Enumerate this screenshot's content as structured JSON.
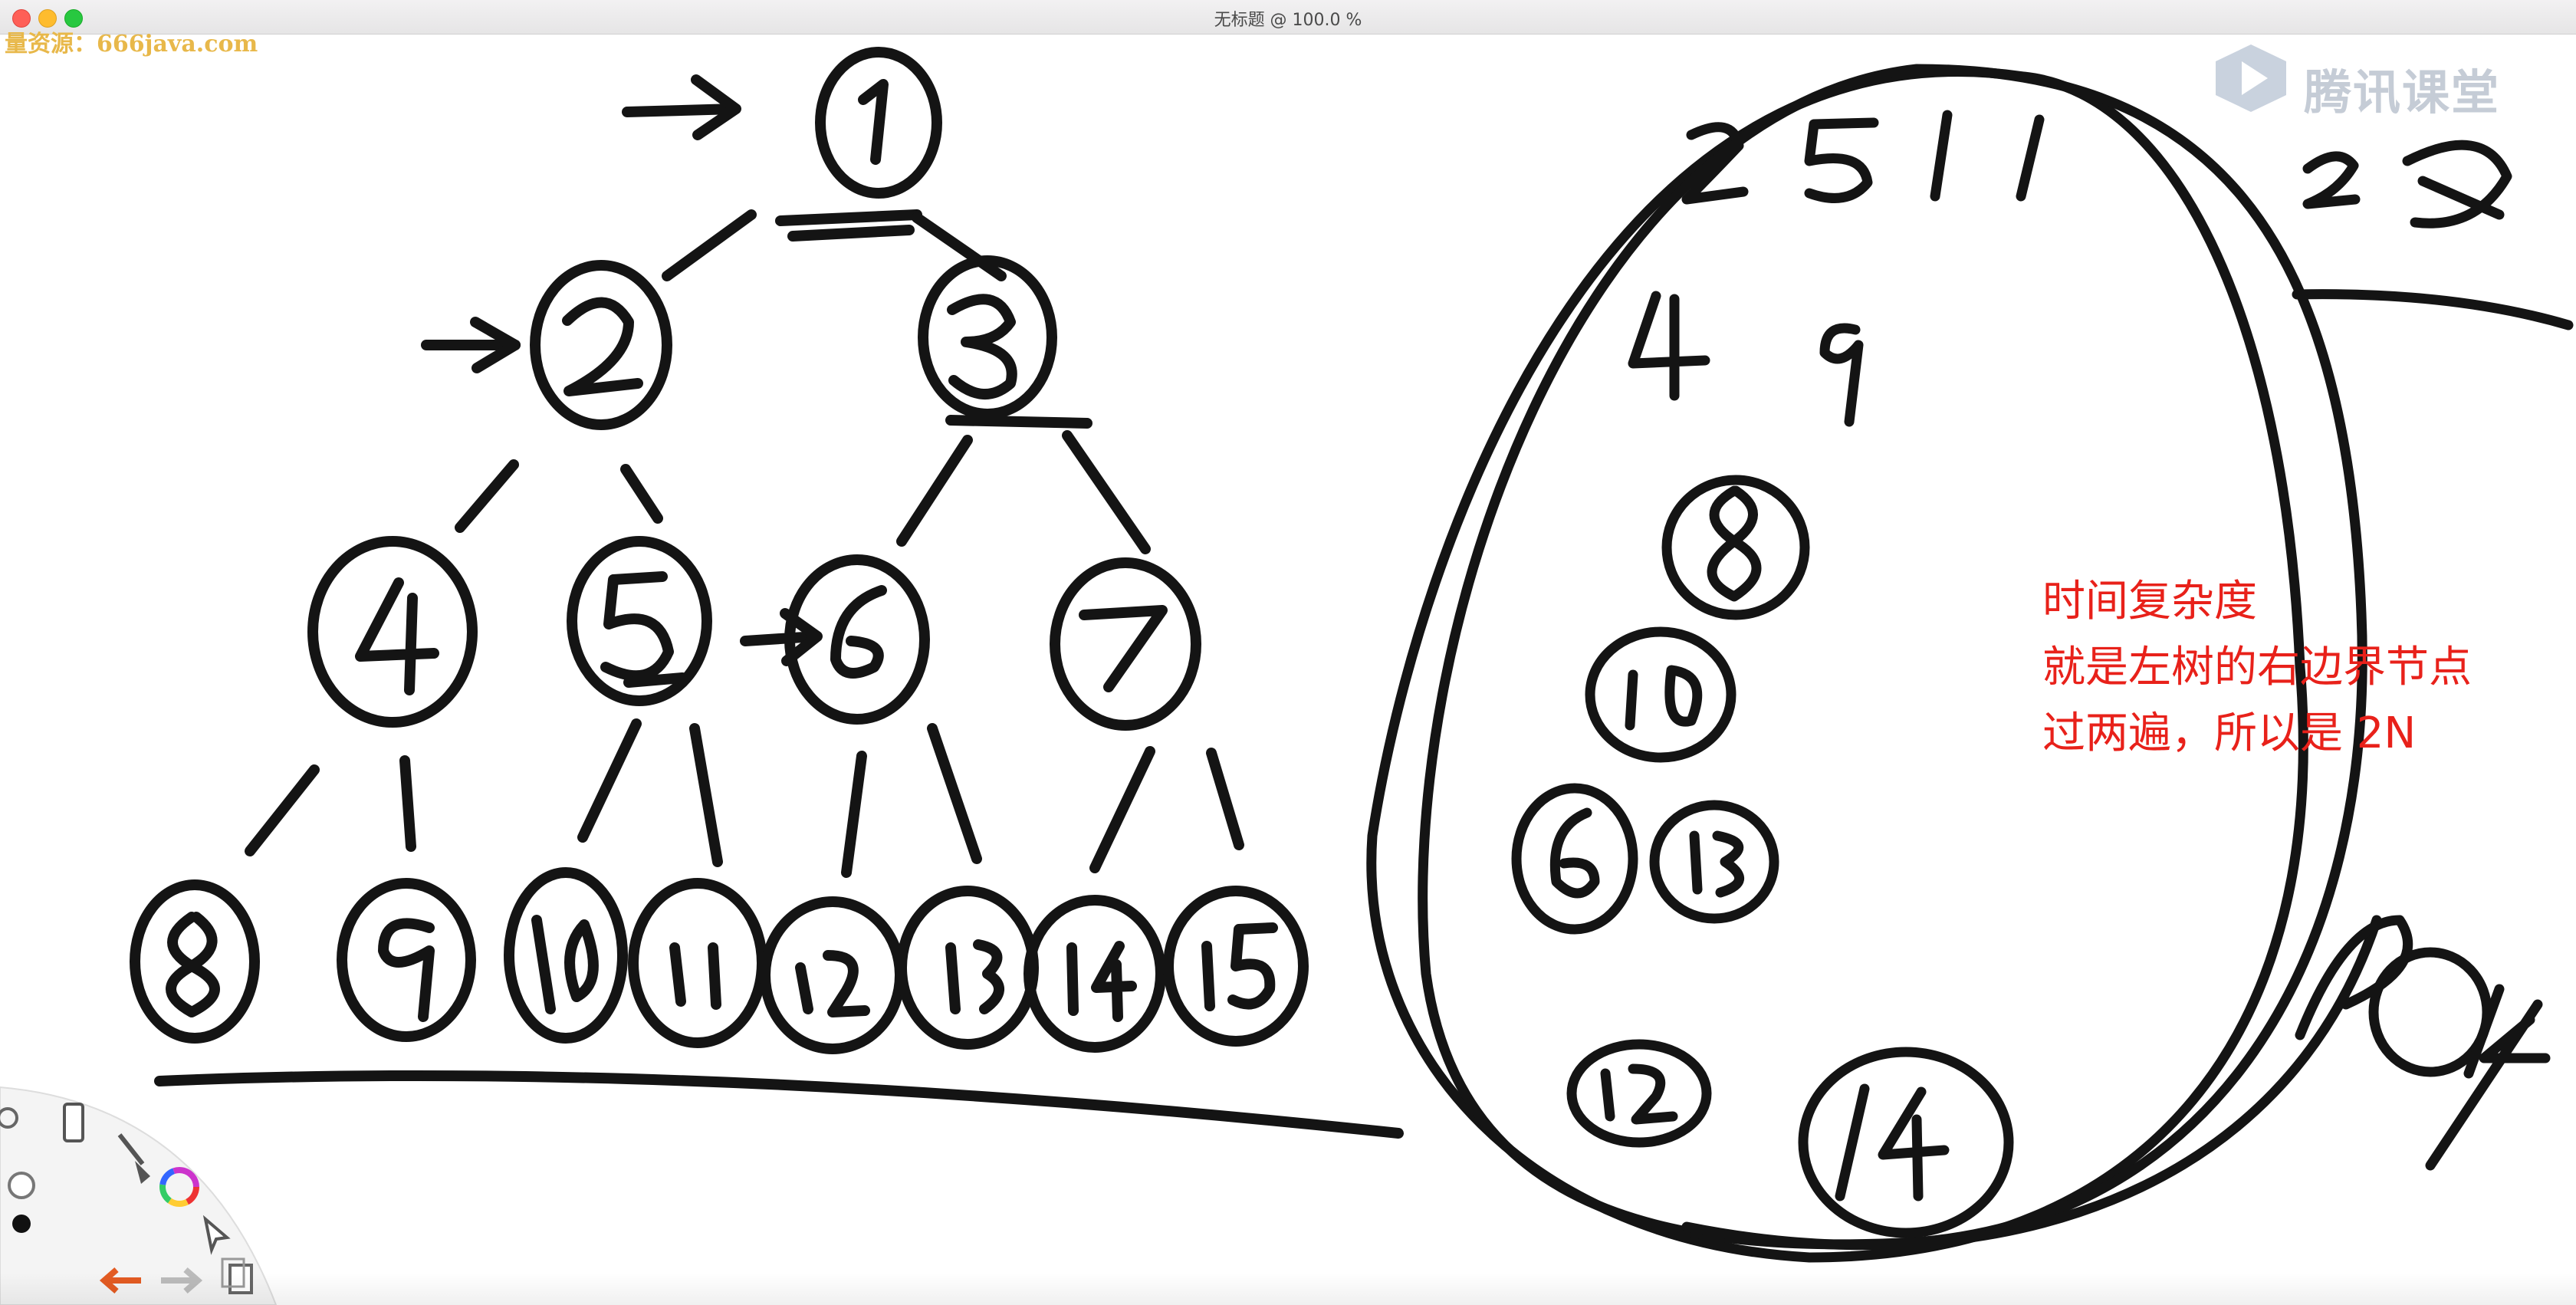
{
  "window": {
    "title": "无标题 @ 100.0 %"
  },
  "watermark": {
    "text": "量资源：666java.com"
  },
  "logo": {
    "brand": "腾讯课堂",
    "icon": "play-triangle-icon"
  },
  "sketch": {
    "tree_nodes": [
      "1",
      "2",
      "3",
      "4",
      "5",
      "6",
      "7",
      "8",
      "9",
      "10",
      "11",
      "12",
      "13",
      "14",
      "15"
    ],
    "ellipse_rows": [
      "2 5 11",
      "4 9",
      "8",
      "10",
      "6 13",
      "12",
      "14"
    ],
    "side_scribbles": [
      "2",
      "14"
    ]
  },
  "note": {
    "line1": "时间复杂度",
    "line2": "就是左树的右边界节点",
    "line3": "过两遍，所以是 2N",
    "color": "#e8211a"
  },
  "toolbar": {
    "tools": [
      "settings-icon",
      "ruler-icon",
      "brush-icon",
      "color-wheel-icon",
      "selection-icon",
      "dot-icon",
      "undo-icon",
      "redo-icon",
      "copy-icon"
    ]
  }
}
